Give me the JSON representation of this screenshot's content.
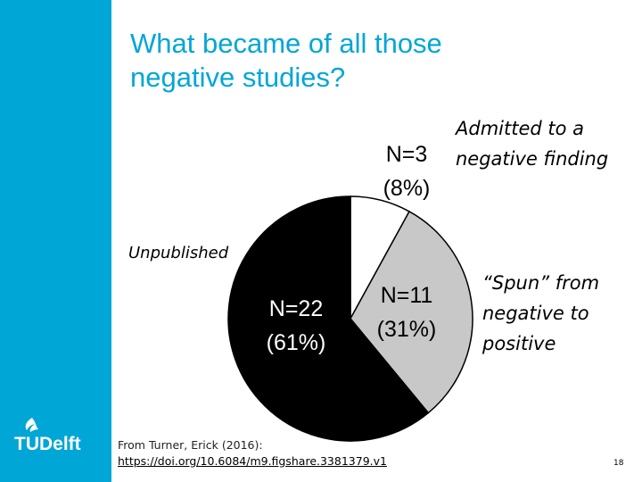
{
  "slide": {
    "title_line1": "What became of all those",
    "title_line2": "negative studies?",
    "source_text": "From Turner, Erick (2016):",
    "source_link": "https://doi.org/10.6084/m9.figshare.3381379.v1",
    "page_number": "18"
  },
  "brand": {
    "logo_text": "TUDelft",
    "sidebar_color": "#00a6d6",
    "title_color": "#00a6d6"
  },
  "chart_data": {
    "type": "pie",
    "title": "",
    "slices": [
      {
        "count_label": "N=3",
        "percent_label": "(8%)",
        "callout": "Admitted to a negative finding",
        "callout_line1": "Admitted to a",
        "callout_line2": "negative finding",
        "value": 8,
        "color": "#ffffff"
      },
      {
        "count_label": "N=11",
        "percent_label": "(31%)",
        "callout": "“Spun” from negative to positive",
        "callout_line1": "“Spun” from",
        "callout_line2": "negative to",
        "callout_line3": "positive",
        "value": 31,
        "color": "#c8c8c8"
      },
      {
        "count_label": "N=22",
        "percent_label": "(61%)",
        "callout": "Unpublished",
        "value": 61,
        "color": "#000000"
      }
    ]
  }
}
